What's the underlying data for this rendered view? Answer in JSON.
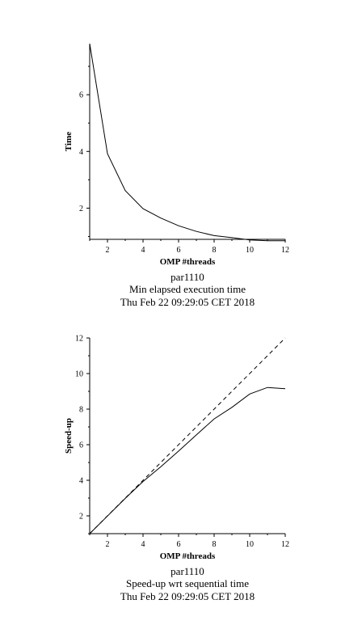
{
  "chart_data": [
    {
      "type": "line",
      "xlabel": "OMP #threads",
      "ylabel": "Time",
      "caption": [
        "par1110",
        "Min elapsed execution time",
        "Thu Feb 22 09:29:05 CET 2018"
      ],
      "xlim": [
        1,
        12
      ],
      "ylim": [
        0.9,
        7.8
      ],
      "x_ticks": [
        2,
        4,
        6,
        8,
        10,
        12
      ],
      "y_ticks": [
        2,
        4,
        6
      ],
      "series": [
        {
          "x": [
            1,
            2,
            3,
            4,
            5,
            6,
            7,
            8,
            9,
            10,
            11,
            12
          ],
          "y": [
            7.8,
            3.92,
            2.62,
            1.98,
            1.65,
            1.38,
            1.18,
            1.03,
            0.96,
            0.88,
            0.85,
            0.85
          ],
          "style": "solid"
        }
      ]
    },
    {
      "type": "line",
      "xlabel": "OMP #threads",
      "ylabel": "Speed-up",
      "caption": [
        "par1110",
        "Speed-up wrt sequential time",
        "Thu Feb 22 09:29:05 CET 2018"
      ],
      "xlim": [
        1,
        12
      ],
      "ylim": [
        1,
        12
      ],
      "x_ticks": [
        2,
        4,
        6,
        8,
        10,
        12
      ],
      "y_ticks": [
        2,
        4,
        6,
        8,
        10,
        12
      ],
      "series": [
        {
          "x": [
            1,
            2,
            3,
            4,
            5,
            6,
            7,
            8,
            9,
            10,
            11,
            12
          ],
          "y": [
            1,
            1.99,
            2.98,
            3.93,
            4.76,
            5.64,
            6.55,
            7.45,
            8.1,
            8.85,
            9.22,
            9.15
          ],
          "style": "solid"
        },
        {
          "x": [
            1,
            12
          ],
          "y": [
            1,
            12
          ],
          "style": "dashed"
        }
      ]
    }
  ]
}
